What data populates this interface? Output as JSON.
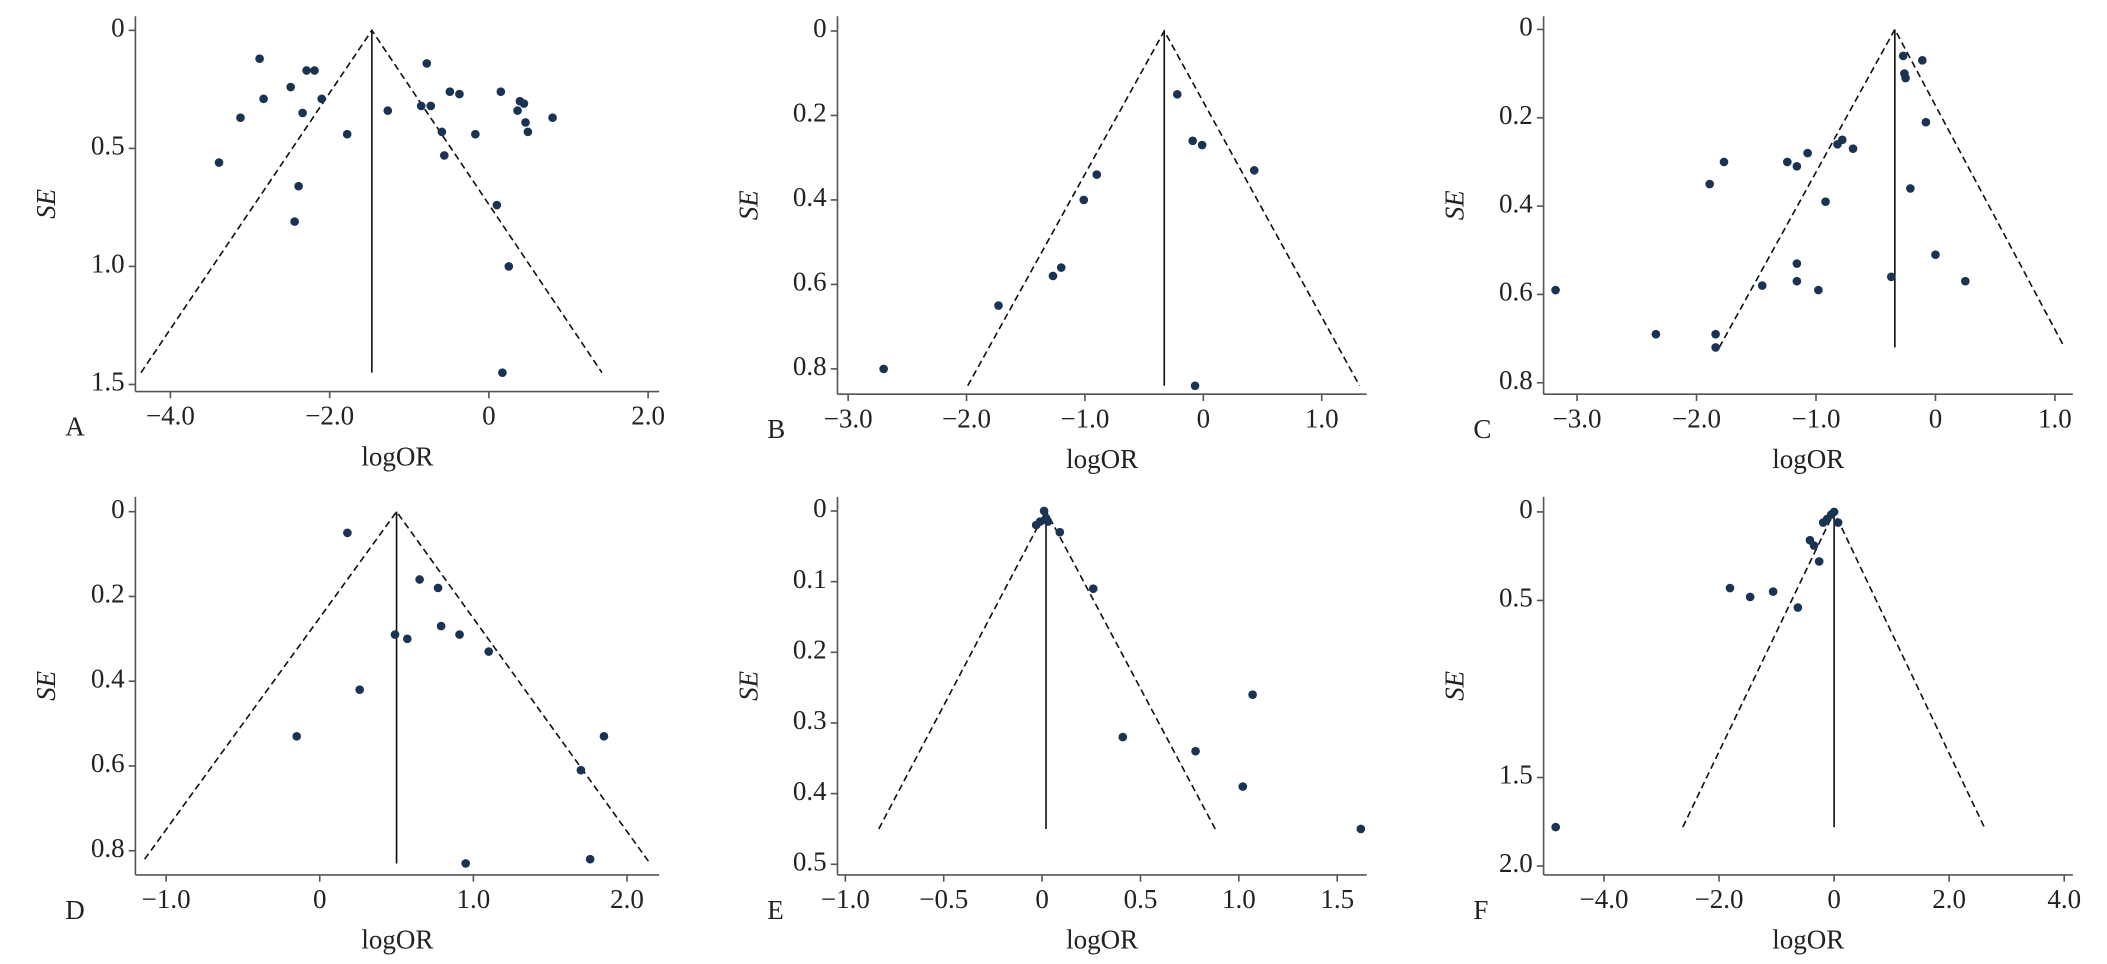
{
  "chart_data": [
    {
      "type": "scatter",
      "panel": "A",
      "xlabel": "logOR",
      "ylabel": "SE",
      "color": "#1a3353",
      "y_reversed": true,
      "x": [
        -2.88,
        -3.12,
        -3.39,
        -2.83,
        -2.49,
        -2.29,
        -2.19,
        -2.1,
        -2.34,
        -2.39,
        -2.44,
        -1.78,
        -1.27,
        -0.78,
        -0.85,
        -0.73,
        -0.59,
        -0.56,
        -0.49,
        -0.37,
        -0.17,
        0.15,
        0.36,
        0.39,
        0.44,
        0.46,
        0.49,
        0.8,
        0.1,
        0.25,
        0.17
      ],
      "y": [
        0.12,
        0.37,
        0.56,
        0.29,
        0.24,
        0.17,
        0.17,
        0.29,
        0.35,
        0.66,
        0.81,
        0.44,
        0.34,
        0.14,
        0.32,
        0.32,
        0.43,
        0.53,
        0.26,
        0.27,
        0.44,
        0.26,
        0.34,
        0.3,
        0.31,
        0.39,
        0.43,
        0.37,
        0.74,
        1.0,
        1.45
      ],
      "xlim": [
        -4.44,
        2.14
      ],
      "ylim": [
        -0.06,
        1.53
      ],
      "xticks": [
        {
          "value": -4,
          "label": "−4.0"
        },
        {
          "value": -2,
          "label": "−2.0"
        },
        0,
        {
          "value": 2,
          "label": "2.0"
        }
      ],
      "yticks": [
        0,
        0.5,
        {
          "value": 1,
          "label": "1.0"
        },
        1.5
      ],
      "pooled_line": {
        "x": [
          -1.47,
          -1.47
        ],
        "y": [
          0,
          1.45
        ]
      },
      "funnel": {
        "x": [
          -4.37,
          -1.47,
          1.42
        ],
        "y": [
          1.45,
          0,
          1.45
        ]
      }
    },
    {
      "type": "scatter",
      "panel": "B",
      "xlabel": "logOR",
      "ylabel": "SE",
      "color": "#1a3353",
      "y_reversed": true,
      "x": [
        -2.7,
        -1.73,
        -1.27,
        -1.2,
        -1.01,
        -0.9,
        -0.22,
        -0.09,
        -0.01,
        0.43,
        -0.07
      ],
      "y": [
        0.8,
        0.65,
        0.58,
        0.56,
        0.4,
        0.34,
        0.15,
        0.26,
        0.27,
        0.33,
        0.84
      ],
      "xlim": [
        -3.09,
        1.38
      ],
      "ylim": [
        -0.035,
        0.86
      ],
      "xticks": [
        {
          "value": -3,
          "label": "−3.0"
        },
        {
          "value": -2,
          "label": "−2.0"
        },
        {
          "value": -1,
          "label": "−1.0"
        },
        0,
        {
          "value": 1,
          "label": "1.0"
        }
      ],
      "yticks": [
        0,
        0.2,
        0.4,
        0.6,
        0.8
      ],
      "pooled_line": {
        "x": [
          -0.33,
          -0.33
        ],
        "y": [
          0,
          0.84
        ]
      },
      "funnel": {
        "x": [
          -1.99,
          -0.33,
          1.32
        ],
        "y": [
          0.84,
          0,
          0.84
        ]
      }
    },
    {
      "type": "scatter",
      "panel": "C",
      "xlabel": "logOR",
      "ylabel": "SE",
      "color": "#1a3353",
      "y_reversed": true,
      "x": [
        -0.27,
        -0.11,
        -0.26,
        -0.25,
        -0.08,
        -0.78,
        -0.82,
        -0.69,
        -1.07,
        -1.24,
        -1.16,
        -1.77,
        -1.89,
        -0.92,
        -0.21,
        -1.16,
        -1.45,
        -1.16,
        -0.98,
        -0.37,
        0.0,
        0.25,
        -3.18,
        -2.34,
        -1.84,
        -1.84
      ],
      "y": [
        0.06,
        0.07,
        0.1,
        0.11,
        0.21,
        0.25,
        0.26,
        0.27,
        0.28,
        0.3,
        0.31,
        0.3,
        0.35,
        0.39,
        0.36,
        0.53,
        0.58,
        0.57,
        0.59,
        0.56,
        0.51,
        0.57,
        0.59,
        0.69,
        0.69,
        0.72
      ],
      "xlim": [
        -3.28,
        1.15
      ],
      "ylim": [
        -0.03,
        0.826
      ],
      "xticks": [
        {
          "value": -3,
          "label": "−3.0"
        },
        {
          "value": -2,
          "label": "−2.0"
        },
        {
          "value": -1,
          "label": "−1.0"
        },
        0,
        {
          "value": 1,
          "label": "1.0"
        }
      ],
      "yticks": [
        0,
        0.2,
        0.4,
        0.6,
        0.8
      ],
      "pooled_line": {
        "x": [
          -0.34,
          -0.34
        ],
        "y": [
          0,
          0.72
        ]
      },
      "funnel": {
        "x": [
          -1.81,
          -0.34,
          1.08
        ],
        "y": [
          0.72,
          0,
          0.72
        ]
      }
    },
    {
      "type": "scatter",
      "panel": "D",
      "xlabel": "logOR",
      "ylabel": "SE",
      "color": "#1a3353",
      "y_reversed": true,
      "x": [
        0.18,
        0.65,
        0.77,
        0.49,
        0.57,
        0.79,
        0.91,
        1.1,
        0.26,
        -0.15,
        1.7,
        1.85,
        1.76,
        0.95
      ],
      "y": [
        0.05,
        0.16,
        0.18,
        0.29,
        0.3,
        0.27,
        0.29,
        0.33,
        0.42,
        0.53,
        0.61,
        0.53,
        0.82,
        0.83
      ],
      "xlim": [
        -1.2,
        2.21
      ],
      "ylim": [
        -0.035,
        0.857
      ],
      "xticks": [
        {
          "value": -1,
          "label": "−1.0"
        },
        0,
        {
          "value": 1,
          "label": "1.0"
        },
        {
          "value": 2,
          "label": "2.0"
        }
      ],
      "yticks": [
        0,
        0.2,
        0.4,
        0.6,
        0.8
      ],
      "pooled_line": {
        "x": [
          0.5,
          0.5
        ],
        "y": [
          0,
          0.83
        ]
      },
      "funnel": {
        "x": [
          -1.14,
          0.5,
          2.15
        ],
        "y": [
          0.82,
          0,
          0.83
        ]
      }
    },
    {
      "type": "scatter",
      "panel": "E",
      "xlabel": "logOR",
      "ylabel": "SE",
      "color": "#1a3353",
      "y_reversed": true,
      "x": [
        0.01,
        0.02,
        -0.01,
        -0.03,
        0.03,
        0.09,
        0.26,
        0.41,
        0.78,
        1.07,
        1.02,
        1.62
      ],
      "y": [
        0.0,
        0.01,
        0.015,
        0.02,
        0.015,
        0.03,
        0.11,
        0.32,
        0.34,
        0.26,
        0.39,
        0.45
      ],
      "xlim": [
        -1.04,
        1.65
      ],
      "ylim": [
        -0.02,
        0.515
      ],
      "xticks": [
        {
          "value": -1,
          "label": "−1.0"
        },
        {
          "value": -0.5,
          "label": "−0.5"
        },
        0,
        0.5,
        {
          "value": 1,
          "label": "1.0"
        },
        1.5
      ],
      "yticks": [
        0,
        0.1,
        0.2,
        0.3,
        0.4,
        0.5
      ],
      "pooled_line": {
        "x": [
          0.02,
          0.02
        ],
        "y": [
          0,
          0.45
        ]
      },
      "funnel": {
        "x": [
          -0.83,
          0.02,
          0.88
        ],
        "y": [
          0.45,
          0,
          0.45
        ]
      }
    },
    {
      "type": "scatter",
      "panel": "F",
      "xlabel": "logOR",
      "ylabel": "SE",
      "color": "#1a3353",
      "y_reversed": true,
      "x": [
        -0.05,
        -0.12,
        0,
        0.07,
        -0.19,
        -0.42,
        -0.35,
        -0.26,
        -1.06,
        -1.46,
        -1.81,
        -0.63,
        -4.84
      ],
      "y": [
        0.015,
        0.04,
        0,
        0.06,
        0.06,
        0.16,
        0.19,
        0.28,
        0.45,
        0.48,
        0.43,
        0.54,
        1.78
      ],
      "xlim": [
        -5.05,
        4.15
      ],
      "ylim": [
        -0.085,
        2.05
      ],
      "xticks": [
        {
          "value": -4,
          "label": "−4.0"
        },
        {
          "value": -2,
          "label": "−2.0"
        },
        0,
        {
          "value": 2,
          "label": "2.0"
        },
        {
          "value": 4,
          "label": "4.0"
        }
      ],
      "yticks": [
        0,
        0.5,
        1.5,
        {
          "value": 2,
          "label": "2.0"
        }
      ],
      "pooled_line": {
        "x": [
          0,
          0
        ],
        "y": [
          0,
          1.78
        ]
      },
      "funnel": {
        "x": [
          -2.63,
          0,
          2.61
        ],
        "y": [
          1.78,
          0,
          1.78
        ]
      }
    }
  ]
}
